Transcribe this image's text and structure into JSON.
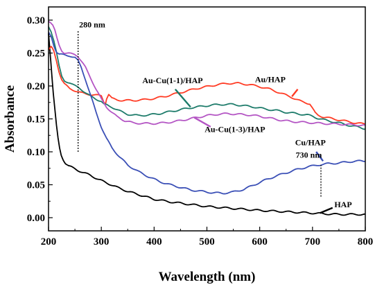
{
  "chart_data": {
    "type": "line",
    "xlabel": "Wavelength (nm)",
    "ylabel": "Absorbance",
    "xlim": [
      200,
      800
    ],
    "ylim": [
      -0.02,
      0.32
    ],
    "xticks": [
      200,
      300,
      400,
      500,
      600,
      700,
      800
    ],
    "yticks": [
      0.0,
      0.05,
      0.1,
      0.15,
      0.2,
      0.25,
      0.3
    ],
    "ytick_labels": [
      "0.00",
      "0.05",
      "0.10",
      "0.15",
      "0.20",
      "0.25",
      "0.30"
    ],
    "grid": false,
    "series": [
      {
        "name": "HAP",
        "color": "#000000",
        "points": [
          [
            200,
            0.28
          ],
          [
            203,
            0.25
          ],
          [
            206,
            0.22
          ],
          [
            209,
            0.19
          ],
          [
            212,
            0.165
          ],
          [
            215,
            0.14
          ],
          [
            218,
            0.12
          ],
          [
            221,
            0.105
          ],
          [
            224,
            0.095
          ],
          [
            228,
            0.088
          ],
          [
            232,
            0.083
          ],
          [
            238,
            0.079
          ],
          [
            245,
            0.076
          ],
          [
            255,
            0.072
          ],
          [
            265,
            0.069
          ],
          [
            280,
            0.064
          ],
          [
            295,
            0.058
          ],
          [
            310,
            0.053
          ],
          [
            330,
            0.046
          ],
          [
            350,
            0.04
          ],
          [
            375,
            0.034
          ],
          [
            400,
            0.028
          ],
          [
            430,
            0.024
          ],
          [
            460,
            0.021
          ],
          [
            500,
            0.017
          ],
          [
            550,
            0.014
          ],
          [
            600,
            0.011
          ],
          [
            650,
            0.009
          ],
          [
            700,
            0.007
          ],
          [
            720,
            0.006
          ],
          [
            750,
            0.005
          ],
          [
            800,
            0.005
          ]
        ]
      },
      {
        "name": "Au/HAP",
        "color": "#ff3b24",
        "points": [
          [
            200,
            0.255
          ],
          [
            205,
            0.26
          ],
          [
            210,
            0.252
          ],
          [
            215,
            0.238
          ],
          [
            220,
            0.222
          ],
          [
            225,
            0.21
          ],
          [
            230,
            0.203
          ],
          [
            240,
            0.196
          ],
          [
            250,
            0.193
          ],
          [
            260,
            0.19
          ],
          [
            270,
            0.188
          ],
          [
            280,
            0.187
          ],
          [
            290,
            0.186
          ],
          [
            300,
            0.185
          ],
          [
            305,
            0.176
          ],
          [
            308,
            0.174
          ],
          [
            310,
            0.181
          ],
          [
            314,
            0.187
          ],
          [
            320,
            0.181
          ],
          [
            330,
            0.179
          ],
          [
            340,
            0.178
          ],
          [
            360,
            0.178
          ],
          [
            380,
            0.179
          ],
          [
            400,
            0.181
          ],
          [
            420,
            0.184
          ],
          [
            440,
            0.188
          ],
          [
            460,
            0.192
          ],
          [
            480,
            0.196
          ],
          [
            500,
            0.199
          ],
          [
            520,
            0.202
          ],
          [
            540,
            0.204
          ],
          [
            560,
            0.204
          ],
          [
            580,
            0.202
          ],
          [
            600,
            0.199
          ],
          [
            620,
            0.195
          ],
          [
            640,
            0.189
          ],
          [
            660,
            0.183
          ],
          [
            680,
            0.176
          ],
          [
            695,
            0.173
          ],
          [
            700,
            0.166
          ],
          [
            705,
            0.159
          ],
          [
            710,
            0.156
          ],
          [
            720,
            0.153
          ],
          [
            740,
            0.15
          ],
          [
            760,
            0.147
          ],
          [
            780,
            0.144
          ],
          [
            800,
            0.142
          ]
        ]
      },
      {
        "name": "Au-Cu(1-1)/HAP",
        "color": "#1d7b6a",
        "points": [
          [
            200,
            0.29
          ],
          [
            205,
            0.282
          ],
          [
            210,
            0.27
          ],
          [
            215,
            0.252
          ],
          [
            220,
            0.23
          ],
          [
            225,
            0.214
          ],
          [
            230,
            0.208
          ],
          [
            240,
            0.205
          ],
          [
            250,
            0.2
          ],
          [
            260,
            0.196
          ],
          [
            270,
            0.19
          ],
          [
            280,
            0.184
          ],
          [
            290,
            0.18
          ],
          [
            300,
            0.177
          ],
          [
            305,
            0.172
          ],
          [
            310,
            0.171
          ],
          [
            320,
            0.168
          ],
          [
            330,
            0.164
          ],
          [
            340,
            0.16
          ],
          [
            350,
            0.157
          ],
          [
            370,
            0.155
          ],
          [
            390,
            0.156
          ],
          [
            410,
            0.158
          ],
          [
            430,
            0.161
          ],
          [
            450,
            0.164
          ],
          [
            470,
            0.167
          ],
          [
            490,
            0.169
          ],
          [
            510,
            0.171
          ],
          [
            530,
            0.172
          ],
          [
            550,
            0.172
          ],
          [
            570,
            0.17
          ],
          [
            590,
            0.168
          ],
          [
            610,
            0.165
          ],
          [
            630,
            0.163
          ],
          [
            650,
            0.16
          ],
          [
            670,
            0.158
          ],
          [
            690,
            0.156
          ],
          [
            700,
            0.154
          ],
          [
            710,
            0.151
          ],
          [
            730,
            0.147
          ],
          [
            750,
            0.144
          ],
          [
            770,
            0.14
          ],
          [
            790,
            0.137
          ],
          [
            800,
            0.135
          ]
        ]
      },
      {
        "name": "Au-Cu(1-3)/HAP",
        "color": "#b455c4",
        "points": [
          [
            200,
            0.298
          ],
          [
            204,
            0.296
          ],
          [
            208,
            0.292
          ],
          [
            212,
            0.284
          ],
          [
            216,
            0.272
          ],
          [
            220,
            0.262
          ],
          [
            225,
            0.254
          ],
          [
            230,
            0.25
          ],
          [
            240,
            0.249
          ],
          [
            250,
            0.248
          ],
          [
            255,
            0.246
          ],
          [
            260,
            0.24
          ],
          [
            270,
            0.228
          ],
          [
            280,
            0.212
          ],
          [
            290,
            0.195
          ],
          [
            300,
            0.18
          ],
          [
            310,
            0.168
          ],
          [
            320,
            0.16
          ],
          [
            330,
            0.153
          ],
          [
            345,
            0.147
          ],
          [
            360,
            0.144
          ],
          [
            380,
            0.143
          ],
          [
            400,
            0.143
          ],
          [
            420,
            0.144
          ],
          [
            440,
            0.146
          ],
          [
            460,
            0.149
          ],
          [
            480,
            0.152
          ],
          [
            500,
            0.155
          ],
          [
            520,
            0.157
          ],
          [
            540,
            0.158
          ],
          [
            560,
            0.157
          ],
          [
            580,
            0.156
          ],
          [
            600,
            0.154
          ],
          [
            620,
            0.151
          ],
          [
            640,
            0.148
          ],
          [
            660,
            0.146
          ],
          [
            680,
            0.145
          ],
          [
            700,
            0.144
          ],
          [
            720,
            0.143
          ],
          [
            750,
            0.142
          ],
          [
            780,
            0.141
          ],
          [
            800,
            0.14
          ]
        ]
      },
      {
        "name": "Cu/HAP",
        "color": "#3a4fb6",
        "points": [
          [
            200,
            0.282
          ],
          [
            205,
            0.275
          ],
          [
            210,
            0.262
          ],
          [
            215,
            0.252
          ],
          [
            220,
            0.248
          ],
          [
            230,
            0.247
          ],
          [
            240,
            0.246
          ],
          [
            250,
            0.243
          ],
          [
            256,
            0.238
          ],
          [
            262,
            0.228
          ],
          [
            270,
            0.21
          ],
          [
            280,
            0.185
          ],
          [
            290,
            0.16
          ],
          [
            300,
            0.138
          ],
          [
            310,
            0.12
          ],
          [
            320,
            0.106
          ],
          [
            335,
            0.092
          ],
          [
            350,
            0.08
          ],
          [
            370,
            0.07
          ],
          [
            390,
            0.062
          ],
          [
            410,
            0.055
          ],
          [
            430,
            0.05
          ],
          [
            450,
            0.046
          ],
          [
            470,
            0.042
          ],
          [
            490,
            0.04
          ],
          [
            510,
            0.038
          ],
          [
            530,
            0.037
          ],
          [
            550,
            0.039
          ],
          [
            570,
            0.043
          ],
          [
            590,
            0.05
          ],
          [
            610,
            0.057
          ],
          [
            630,
            0.063
          ],
          [
            650,
            0.068
          ],
          [
            670,
            0.073
          ],
          [
            690,
            0.077
          ],
          [
            710,
            0.08
          ],
          [
            730,
            0.082
          ],
          [
            750,
            0.083
          ],
          [
            770,
            0.085
          ],
          [
            790,
            0.086
          ],
          [
            800,
            0.086
          ]
        ]
      }
    ],
    "annotations": [
      {
        "text": "280 nm",
        "x": 258,
        "y": 0.289,
        "anchor": "start"
      },
      {
        "text": "Au/HAP",
        "x": 620,
        "y": 0.206,
        "anchor": "middle"
      },
      {
        "text": "Au-Cu(1-1)/HAP",
        "x": 435,
        "y": 0.204,
        "anchor": "middle"
      },
      {
        "text": "Au-Cu(1-3)/HAP",
        "x": 553,
        "y": 0.13,
        "anchor": "middle"
      },
      {
        "text": "Cu/HAP",
        "x": 696,
        "y": 0.11,
        "anchor": "middle"
      },
      {
        "text": "730 nm",
        "x": 693,
        "y": 0.091,
        "anchor": "middle"
      },
      {
        "text": "HAP",
        "x": 758,
        "y": 0.016,
        "anchor": "middle"
      }
    ],
    "pointers": [
      {
        "series": "Au/HAP",
        "from": [
          672,
          0.195
        ],
        "to": [
          661,
          0.184
        ]
      },
      {
        "series": "Au-Cu(1-1)/HAP",
        "from": [
          440,
          0.195
        ],
        "to": [
          469,
          0.168
        ]
      },
      {
        "series": "Au-Cu(1-3)/HAP",
        "from": [
          507,
          0.138
        ],
        "to": [
          476,
          0.152
        ]
      },
      {
        "series": "Cu/HAP",
        "from": [
          707,
          0.1
        ],
        "to": [
          720,
          0.086
        ]
      },
      {
        "series": "HAP",
        "from": [
          738,
          0.015
        ],
        "to": [
          714,
          0.007
        ]
      }
    ],
    "markers": [
      {
        "x": 256,
        "y0": 0.1,
        "y1": 0.284,
        "style": "dotted"
      },
      {
        "x": 716,
        "y0": 0.032,
        "y1": 0.08,
        "style": "dotted"
      }
    ]
  }
}
